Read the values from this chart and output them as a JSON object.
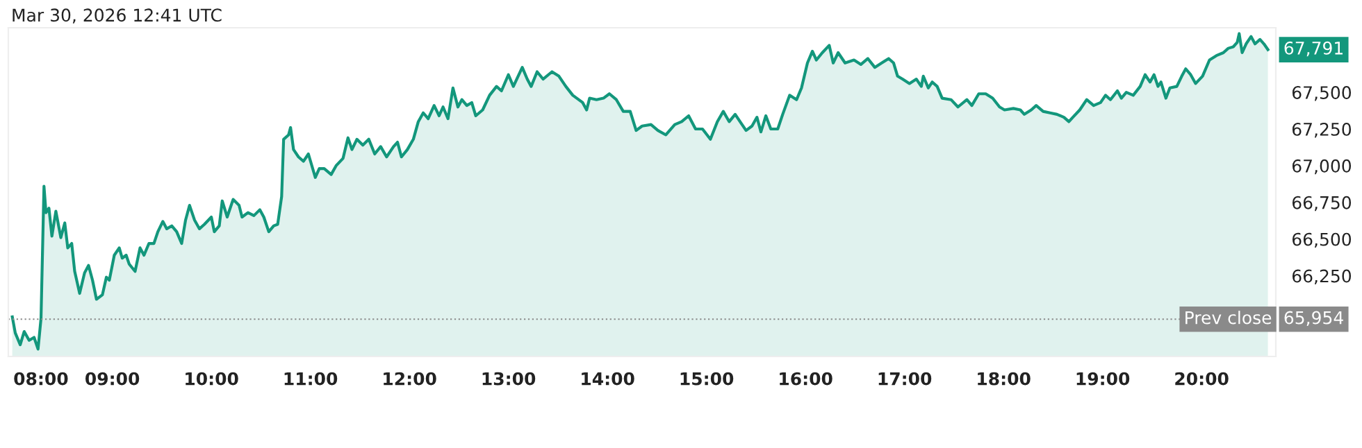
{
  "chart_data": {
    "type": "area",
    "title": "Mar 30, 2026 12:41 UTC",
    "x": [
      7.99,
      8.02,
      8.07,
      8.11,
      8.16,
      8.21,
      8.25,
      8.28,
      8.31,
      8.33,
      8.36,
      8.39,
      8.43,
      8.48,
      8.52,
      8.55,
      8.59,
      8.62,
      8.67,
      8.72,
      8.76,
      8.8,
      8.84,
      8.9,
      8.94,
      8.97,
      9.02,
      9.07,
      9.1,
      9.14,
      9.17,
      9.23,
      9.28,
      9.32,
      9.37,
      9.42,
      9.46,
      9.51,
      9.55,
      9.6,
      9.65,
      9.7,
      9.74,
      9.78,
      9.83,
      9.88,
      9.93,
      10.0,
      10.03,
      10.08,
      10.11,
      10.16,
      10.22,
      10.28,
      10.31,
      10.37,
      10.43,
      10.49,
      10.53,
      10.58,
      10.63,
      10.67,
      10.71,
      10.73,
      10.78,
      10.8,
      10.83,
      10.88,
      10.93,
      10.98,
      11.05,
      11.09,
      11.14,
      11.21,
      11.26,
      11.33,
      11.38,
      11.42,
      11.47,
      11.53,
      11.59,
      11.65,
      11.71,
      11.77,
      11.84,
      11.88,
      11.92,
      11.98,
      12.04,
      12.09,
      12.14,
      12.19,
      12.25,
      12.3,
      12.34,
      12.39,
      12.44,
      12.49,
      12.53,
      12.58,
      12.63,
      12.67,
      12.74,
      12.81,
      12.88,
      12.93,
      13.0,
      13.05,
      13.14,
      13.19,
      13.23,
      13.29,
      13.35,
      13.44,
      13.51,
      13.58,
      13.65,
      13.75,
      13.79,
      13.82,
      13.89,
      13.96,
      14.02,
      14.09,
      14.16,
      14.23,
      14.29,
      14.35,
      14.44,
      14.51,
      14.59,
      14.68,
      14.75,
      14.82,
      14.89,
      14.96,
      15.04,
      15.11,
      15.17,
      15.23,
      15.29,
      15.35,
      15.4,
      15.46,
      15.51,
      15.55,
      15.6,
      15.65,
      15.72,
      15.77,
      15.84,
      15.91,
      15.96,
      16.02,
      16.07,
      16.11,
      16.17,
      16.24,
      16.28,
      16.33,
      16.4,
      16.49,
      16.56,
      16.63,
      16.7,
      16.77,
      16.84,
      16.89,
      16.93,
      16.98,
      17.05,
      17.12,
      17.17,
      17.19,
      17.24,
      17.28,
      17.33,
      17.38,
      17.47,
      17.54,
      17.63,
      17.68,
      17.75,
      17.82,
      17.89,
      17.96,
      18.01,
      18.1,
      18.17,
      18.21,
      18.28,
      18.33,
      18.4,
      18.47,
      18.54,
      18.61,
      18.66,
      18.7,
      18.77,
      18.84,
      18.91,
      18.98,
      19.03,
      19.08,
      19.15,
      19.19,
      19.24,
      19.31,
      19.38,
      19.43,
      19.48,
      19.52,
      19.56,
      19.59,
      19.64,
      19.68,
      19.75,
      19.8,
      19.84,
      19.89,
      19.94,
      20.01,
      20.08,
      20.15,
      20.22,
      20.27,
      20.32,
      20.36,
      20.38,
      20.41,
      20.45,
      20.5,
      20.54,
      20.59,
      20.63,
      20.67
    ],
    "series": [
      {
        "color": "#13977c",
        "values": [
          65970,
          65860,
          65780,
          65870,
          65810,
          65830,
          65750,
          65960,
          66860,
          66680,
          66710,
          66520,
          66690,
          66510,
          66610,
          66440,
          66470,
          66280,
          66130,
          66270,
          66320,
          66220,
          66090,
          66120,
          66240,
          66220,
          66390,
          66440,
          66370,
          66390,
          66330,
          66280,
          66440,
          66390,
          66470,
          66470,
          66550,
          66620,
          66570,
          66590,
          66550,
          66470,
          66630,
          66730,
          66630,
          66570,
          66600,
          66650,
          66550,
          66590,
          66760,
          66650,
          66770,
          66730,
          66650,
          66680,
          66660,
          66700,
          66650,
          66550,
          66590,
          66600,
          66790,
          67180,
          67210,
          67260,
          67110,
          67060,
          67030,
          67080,
          66920,
          66980,
          66980,
          66940,
          67000,
          67050,
          67190,
          67110,
          67180,
          67140,
          67180,
          67080,
          67130,
          67060,
          67130,
          67160,
          67060,
          67110,
          67180,
          67300,
          67360,
          67320,
          67410,
          67340,
          67400,
          67320,
          67530,
          67400,
          67450,
          67410,
          67430,
          67340,
          67380,
          67480,
          67540,
          67510,
          67620,
          67540,
          67670,
          67590,
          67540,
          67640,
          67590,
          67640,
          67610,
          67540,
          67480,
          67430,
          67380,
          67460,
          67450,
          67460,
          67490,
          67450,
          67370,
          67370,
          67240,
          67270,
          67280,
          67240,
          67210,
          67280,
          67300,
          67340,
          67250,
          67250,
          67180,
          67300,
          67370,
          67300,
          67350,
          67290,
          67240,
          67270,
          67330,
          67230,
          67340,
          67250,
          67250,
          67350,
          67480,
          67450,
          67530,
          67700,
          67780,
          67720,
          67770,
          67820,
          67700,
          67770,
          67700,
          67720,
          67690,
          67730,
          67670,
          67700,
          67730,
          67700,
          67610,
          67590,
          67560,
          67590,
          67540,
          67610,
          67530,
          67570,
          67540,
          67460,
          67450,
          67400,
          67450,
          67410,
          67490,
          67490,
          67460,
          67400,
          67380,
          67390,
          67380,
          67350,
          67380,
          67410,
          67370,
          67360,
          67350,
          67330,
          67300,
          67330,
          67380,
          67450,
          67410,
          67430,
          67480,
          67450,
          67510,
          67460,
          67500,
          67480,
          67540,
          67620,
          67570,
          67620,
          67540,
          67570,
          67460,
          67530,
          67540,
          67610,
          67660,
          67620,
          67560,
          67610,
          67720,
          67750,
          67770,
          67800,
          67810,
          67840,
          67900,
          67770,
          67830,
          67880,
          67830,
          67860,
          67830,
          67791
        ]
      }
    ],
    "xlim": [
      7.95,
      20.75
    ],
    "ylim": [
      65700,
      67940
    ],
    "xticks": [
      {
        "value": 8,
        "label": "08:00"
      },
      {
        "value": 9,
        "label": "09:00"
      },
      {
        "value": 10,
        "label": "10:00"
      },
      {
        "value": 11,
        "label": "11:00"
      },
      {
        "value": 12,
        "label": "12:00"
      },
      {
        "value": 13,
        "label": "13:00"
      },
      {
        "value": 14,
        "label": "14:00"
      },
      {
        "value": 15,
        "label": "15:00"
      },
      {
        "value": 16,
        "label": "16:00"
      },
      {
        "value": 17,
        "label": "17:00"
      },
      {
        "value": 18,
        "label": "18:00"
      },
      {
        "value": 19,
        "label": "19:00"
      },
      {
        "value": 20,
        "label": "20:00"
      }
    ],
    "yticks": [
      {
        "value": 66250,
        "label": "66,250"
      },
      {
        "value": 66500,
        "label": "66,500"
      },
      {
        "value": 66750,
        "label": "66,750"
      },
      {
        "value": 67000,
        "label": "67,000"
      },
      {
        "value": 67250,
        "label": "67,250"
      },
      {
        "value": 67500,
        "label": "67,500"
      }
    ],
    "ref_lines": [
      {
        "axis": "y",
        "value": 65954,
        "label": "Prev close",
        "color": "#8a8a8a",
        "line_style": "dotted"
      }
    ],
    "annotations": [
      {
        "text": "67,791",
        "x": 20.67,
        "y": 67791
      },
      {
        "text": "65,954",
        "x": 20.67,
        "y": 65954
      }
    ],
    "grid": false,
    "legend": false
  }
}
